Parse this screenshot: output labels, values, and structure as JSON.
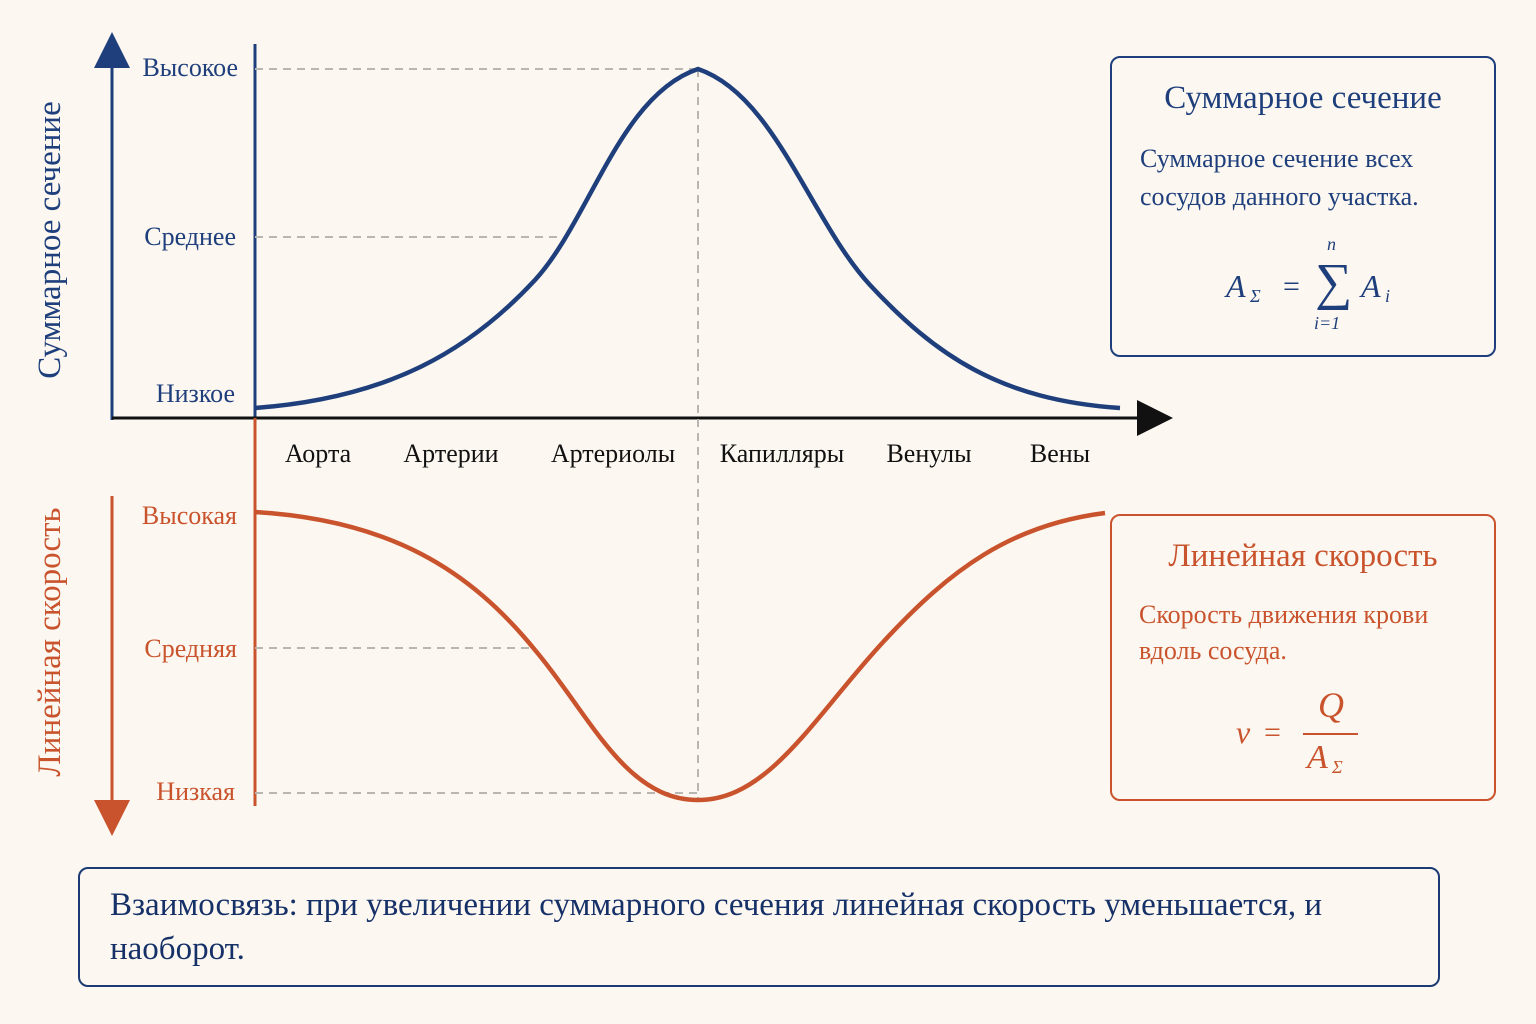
{
  "colors": {
    "blue": "#1f3f7c",
    "orange": "#c9532d",
    "dash": "#b9b6b1",
    "axis": "#111111",
    "background": "#fcf8f1"
  },
  "top_chart": {
    "axis_title": "Суммарное сечение",
    "levels": [
      "Высокое",
      "Среднее",
      "Низкое"
    ],
    "curve": "bell, peak at Капилляры"
  },
  "bottom_chart": {
    "axis_title": "Линейная скорость",
    "levels": [
      "Высокая",
      "Средняя",
      "Низкая"
    ],
    "curve": "inverted bell, minimum at Капилляры"
  },
  "categories": [
    "Аорта",
    "Артерии",
    "Артериолы",
    "Капилляры",
    "Венулы",
    "Вены"
  ],
  "box_area": {
    "title": "Суммарное сечение",
    "text_line1": "Суммарное сечение всех",
    "text_line2": "сосудов данного участка.",
    "formula": {
      "lhs": "A",
      "lhs_sub": "Σ",
      "eq": "=",
      "sum": "∑",
      "upper": "n",
      "lower": "i=1",
      "term": "A",
      "term_sub": "i"
    }
  },
  "box_speed": {
    "title": "Линейная скорость",
    "text_line1": "Скорость движения крови",
    "text_line2": "вдоль сосуда.",
    "formula": {
      "lhs": "v",
      "eq": "=",
      "numerator": "Q",
      "denominator": "A",
      "denominator_sub": "Σ"
    }
  },
  "relation": {
    "text": "Взаимосвязь: при увеличении суммарного сечения линейная скорость уменьшается, и наоборот."
  }
}
